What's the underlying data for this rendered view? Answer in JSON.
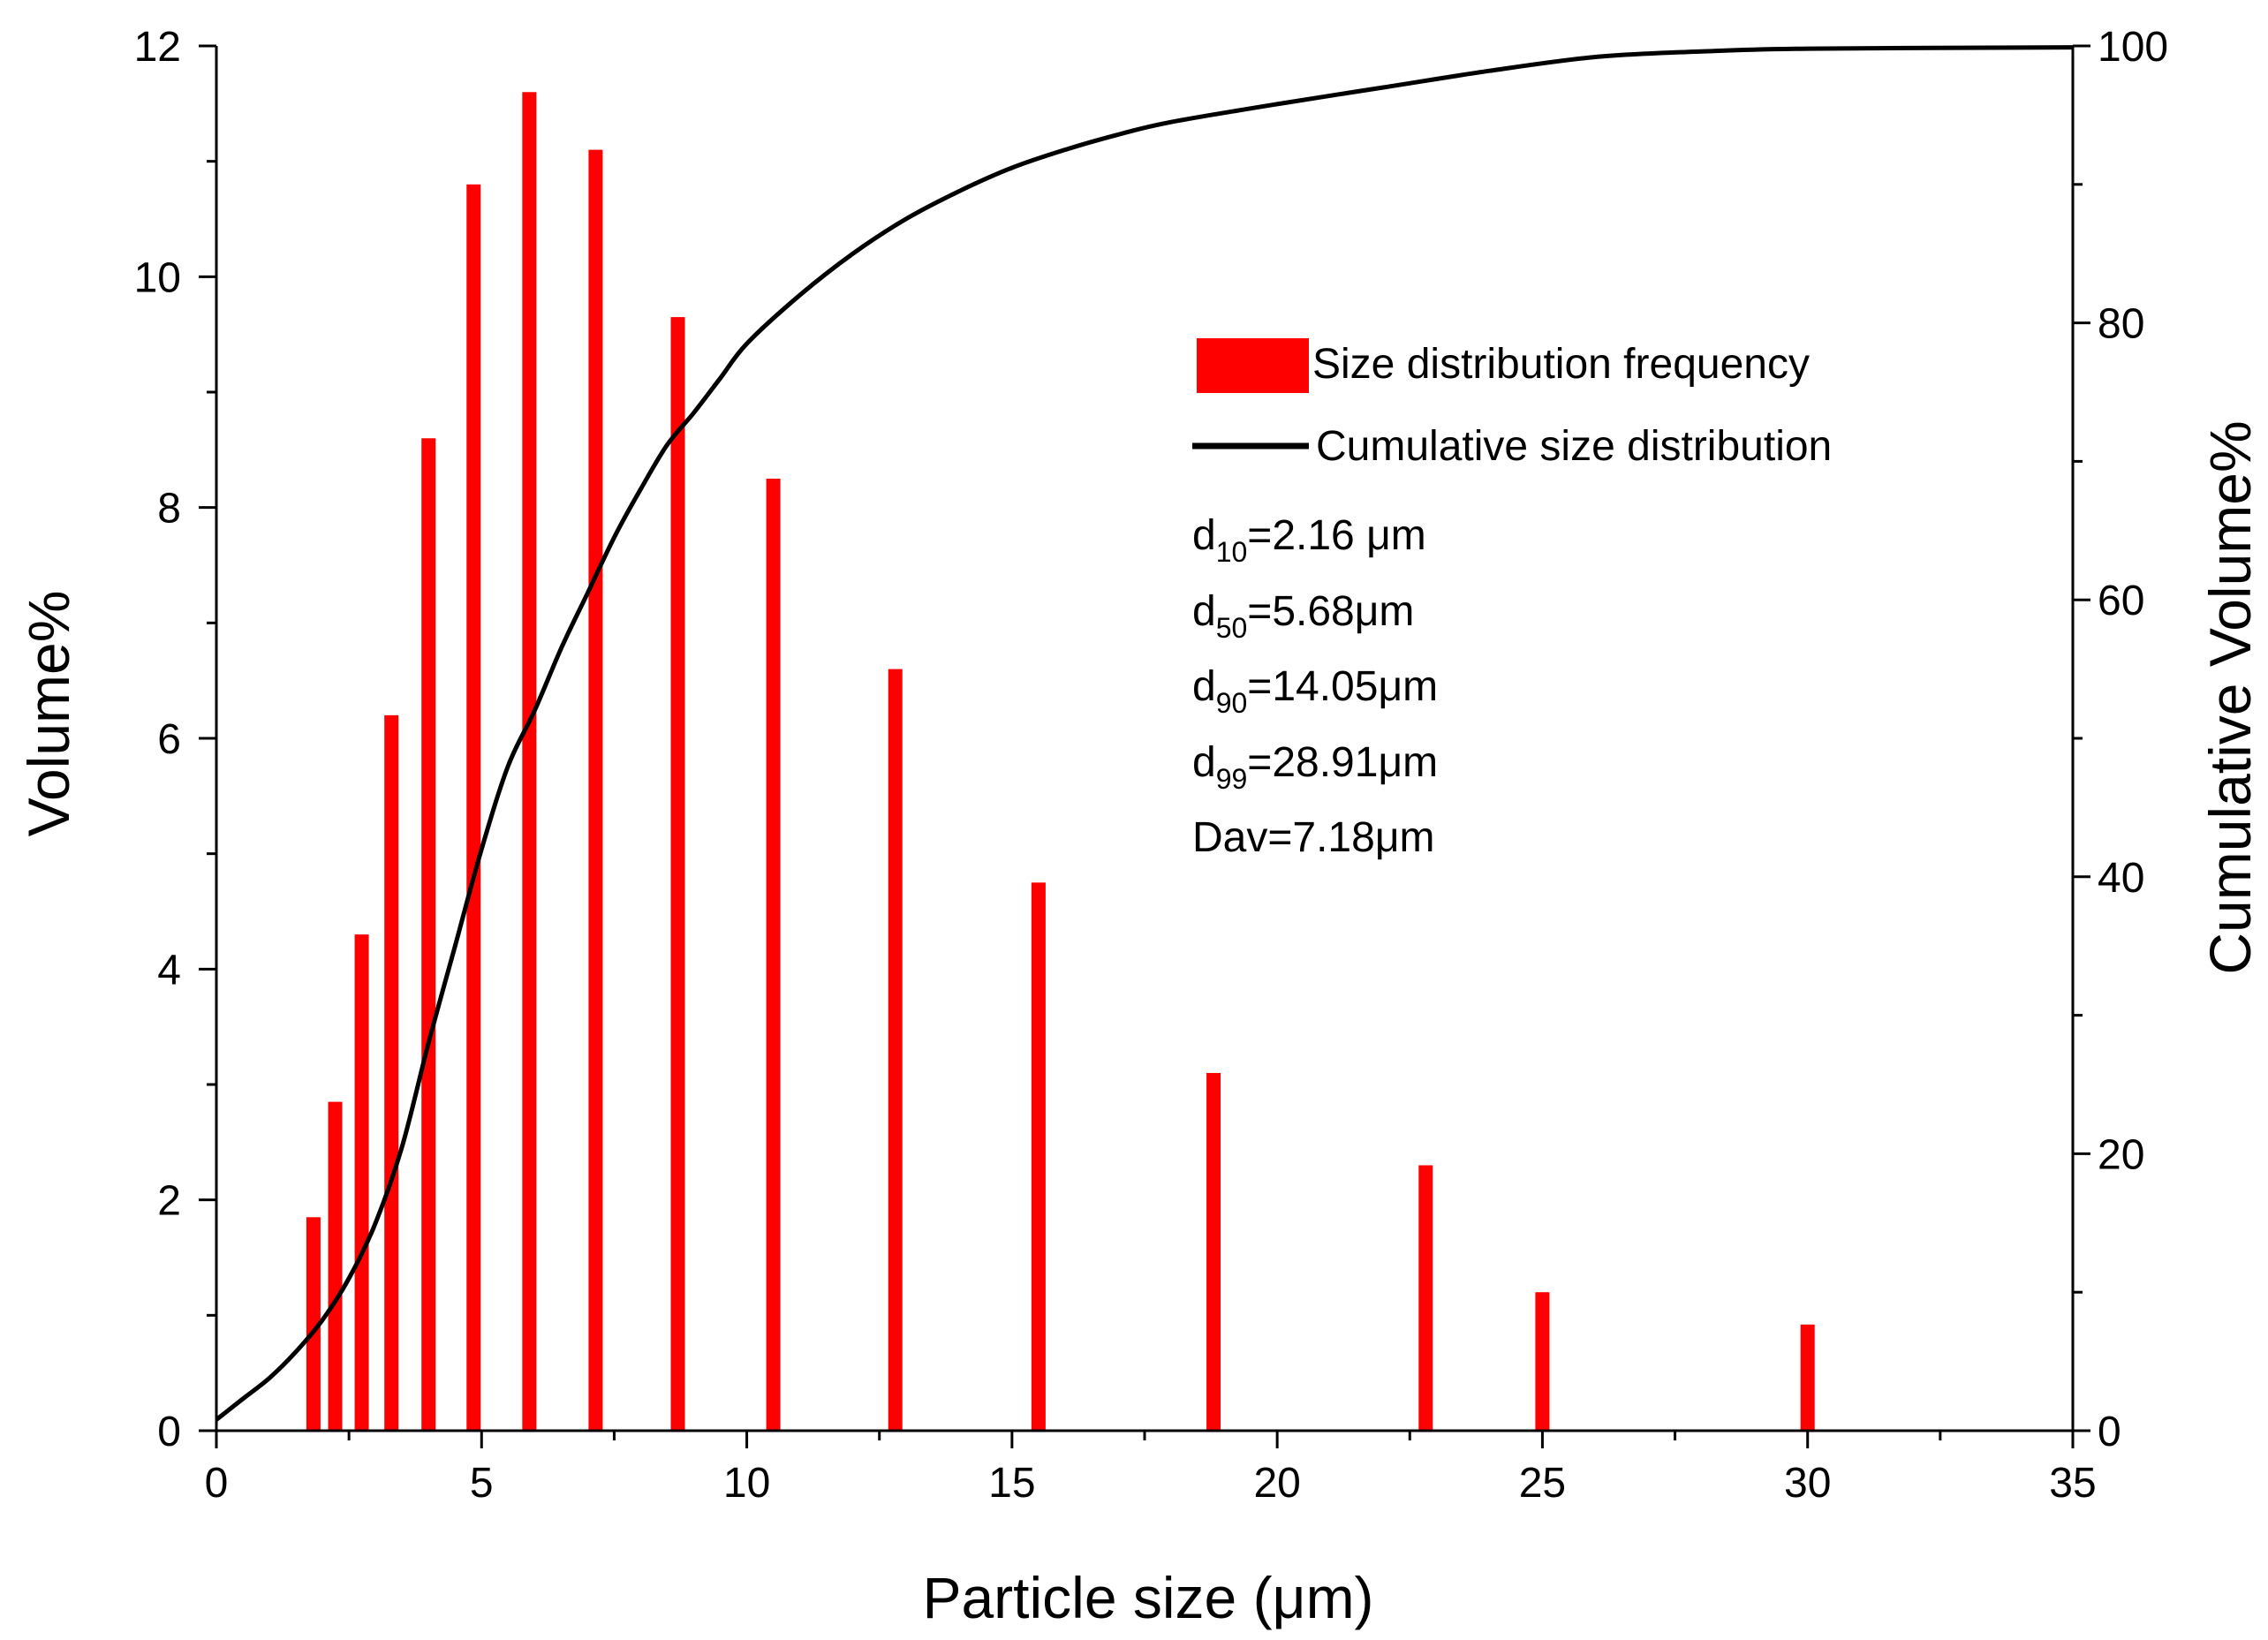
{
  "chart_data": {
    "type": "bar",
    "xlabel": "Particle size (μm)",
    "ylabel": "Volume%",
    "y2label": "Cumulative  Volume%",
    "xlim": [
      0,
      35
    ],
    "ylim": [
      0,
      12
    ],
    "y2lim": [
      0,
      100
    ],
    "x_ticks": [
      "0",
      "5",
      "10",
      "15",
      "20",
      "25",
      "30",
      "35"
    ],
    "y_ticks": [
      "0",
      "2",
      "4",
      "6",
      "8",
      "10",
      "12"
    ],
    "y2_ticks": [
      "0",
      "20",
      "40",
      "60",
      "80",
      "100"
    ],
    "series": [
      {
        "name": "Size distribution frequency",
        "type": "bar",
        "color": "#ff0000",
        "x": [
          1.83,
          2.24,
          2.74,
          3.3,
          4.0,
          4.85,
          5.9,
          7.15,
          8.7,
          10.5,
          12.8,
          15.5,
          18.8,
          22.8,
          25.0,
          30.0
        ],
        "values": [
          1.85,
          2.85,
          4.3,
          6.2,
          8.6,
          10.8,
          11.6,
          11.1,
          9.65,
          8.25,
          6.6,
          4.75,
          3.1,
          2.3,
          1.2,
          0.92
        ]
      },
      {
        "name": "Cumulative size distribution",
        "type": "line",
        "axis": "right",
        "color": "#000000",
        "x": [
          0,
          0.5,
          1,
          1.5,
          2,
          2.5,
          3,
          3.5,
          4,
          4.5,
          5,
          5.5,
          6,
          6.5,
          7,
          7.5,
          8,
          8.5,
          9,
          9.5,
          10,
          11,
          12,
          13,
          14,
          15,
          16,
          17,
          18,
          20,
          22,
          24,
          26,
          28,
          30,
          35
        ],
        "values": [
          0.8,
          2.3,
          3.8,
          5.7,
          8.0,
          11.0,
          15.0,
          20.5,
          28.0,
          35.0,
          42.0,
          48.0,
          52.0,
          56.5,
          60.5,
          64.5,
          68.0,
          71.2,
          73.5,
          76.0,
          78.5,
          82.0,
          85.0,
          87.5,
          89.5,
          91.2,
          92.5,
          93.6,
          94.5,
          95.8,
          97.0,
          98.2,
          99.2,
          99.6,
          99.8,
          99.9
        ]
      }
    ],
    "legend": {
      "position": "upper-right",
      "items": [
        "Size distribution frequency",
        "Cumulative size distribution"
      ]
    },
    "annotations": [
      {
        "label": "d",
        "sub": "10",
        "value": "=2.16 μm"
      },
      {
        "label": "d",
        "sub": "50",
        "value": "=5.68μm"
      },
      {
        "label": "d",
        "sub": "90",
        "value": "=14.05μm"
      },
      {
        "label": "d",
        "sub": "99",
        "value": "=28.91μm"
      },
      {
        "label": "Dav",
        "sub": "",
        "value": "=7.18μm"
      }
    ]
  }
}
